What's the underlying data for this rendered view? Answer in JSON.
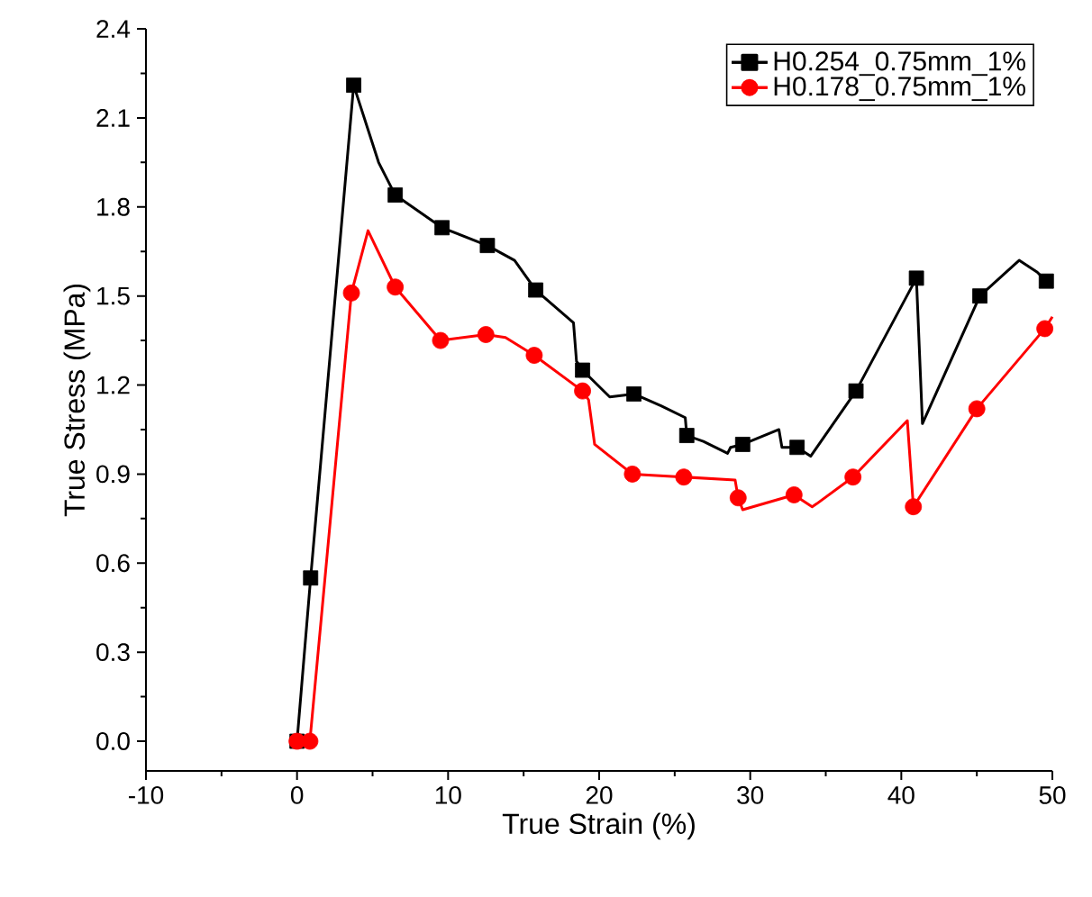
{
  "chart_data": {
    "type": "line",
    "xlabel": "True Strain (%)",
    "ylabel": "True Stress (MPa)",
    "xlim": [
      -10,
      50
    ],
    "xticks": [
      -10,
      0,
      10,
      20,
      30,
      40,
      50
    ],
    "ylim": [
      -0.1,
      2.4
    ],
    "yticks": [
      {
        "value": 0,
        "label": "0.0"
      },
      {
        "value": 0.3,
        "label": "0.3"
      },
      {
        "value": 0.6,
        "label": "0.6"
      },
      {
        "value": 0.9,
        "label": "0.9"
      },
      {
        "value": 1.2,
        "label": "1.2"
      },
      {
        "value": 1.5,
        "label": "1.5"
      },
      {
        "value": 1.8,
        "label": "1.8"
      },
      {
        "value": 2.1,
        "label": "2.1"
      },
      {
        "value": 2.4,
        "label": "2.4"
      }
    ],
    "grid": false,
    "legend": "top right",
    "series": [
      {
        "name": "H0.254_0.75mm_1%",
        "color": "#000000",
        "marker": "none",
        "x": [
          0,
          0.9,
          3.75,
          5.4,
          6.5,
          9.6,
          12.6,
          14.4,
          15.8,
          18.3,
          18.5,
          18.9,
          20.7,
          22.3,
          24.1,
          25.7,
          25.8,
          26.9,
          28.5,
          28.7,
          29.5,
          31.9,
          32.1,
          33.1,
          34.0,
          37.0,
          39.0,
          41.0,
          41.4,
          45.2,
          47.8,
          49.0,
          49.6,
          50
        ],
        "values": [
          0,
          0.55,
          2.21,
          1.95,
          1.84,
          1.73,
          1.67,
          1.62,
          1.52,
          1.41,
          1.28,
          1.25,
          1.16,
          1.17,
          1.13,
          1.09,
          1.03,
          1.01,
          0.97,
          0.99,
          1.0,
          1.05,
          0.99,
          0.99,
          0.96,
          1.18,
          1.37,
          1.56,
          1.07,
          1.5,
          1.62,
          1.58,
          1.55,
          1.55
        ]
      },
      {
        "color": "#000000",
        "type": "scatter",
        "marker": "square",
        "x": [
          0,
          0.9,
          3.75,
          6.5,
          9.6,
          12.6,
          15.8,
          18.9,
          22.3,
          25.8,
          29.5,
          33.1,
          37.0,
          41.0,
          45.2,
          49.6
        ],
        "values": [
          0,
          0.55,
          2.21,
          1.84,
          1.73,
          1.67,
          1.52,
          1.25,
          1.17,
          1.03,
          1.0,
          0.99,
          1.18,
          1.56,
          1.5,
          1.55
        ]
      },
      {
        "name": "H0.178_0.75mm_1%",
        "color": "#ff0000",
        "marker": "none",
        "x": [
          0,
          0.85,
          3.6,
          4.7,
          6.5,
          9.5,
          12.5,
          13.8,
          15.7,
          18.9,
          19.3,
          19.7,
          22.2,
          25.6,
          29.0,
          29.2,
          29.5,
          32.9,
          34.1,
          34.4,
          36.8,
          40.4,
          40.8,
          45.0,
          49.5,
          50
        ],
        "values": [
          0,
          0,
          1.51,
          1.72,
          1.53,
          1.35,
          1.37,
          1.36,
          1.3,
          1.18,
          1.15,
          1.0,
          0.9,
          0.89,
          0.88,
          0.82,
          0.78,
          0.83,
          0.79,
          0.8,
          0.89,
          1.08,
          0.79,
          1.12,
          1.39,
          1.43
        ]
      },
      {
        "color": "#ff0000",
        "type": "scatter",
        "marker": "circle",
        "x": [
          0,
          0.85,
          3.6,
          6.5,
          9.5,
          12.5,
          15.7,
          18.9,
          22.2,
          25.6,
          29.2,
          32.9,
          36.8,
          40.8,
          45.0,
          49.5
        ],
        "values": [
          0,
          0,
          1.51,
          1.53,
          1.35,
          1.37,
          1.3,
          1.18,
          0.9,
          0.89,
          0.82,
          0.83,
          0.89,
          0.79,
          1.12,
          1.39
        ]
      }
    ]
  }
}
